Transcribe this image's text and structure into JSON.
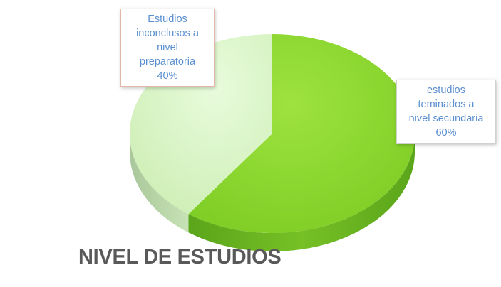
{
  "chart_data": {
    "type": "pie",
    "title": "NIVEL DE ESTUDIOS",
    "slices": [
      {
        "name": "estudios teminados a nivel secundaria",
        "value": 60,
        "label_lines": [
          "estudios",
          "teminados a",
          "nivel secundaria"
        ],
        "percent_label": "60%",
        "color": "#88d431"
      },
      {
        "name": "Estudios inconclusos a nivel preparatoria",
        "value": 40,
        "label_lines": [
          "Estudios",
          "inconclusos a",
          "nivel",
          "preparatoria"
        ],
        "percent_label": "40%",
        "color": "#d9f6c4"
      }
    ],
    "legend": "none"
  }
}
